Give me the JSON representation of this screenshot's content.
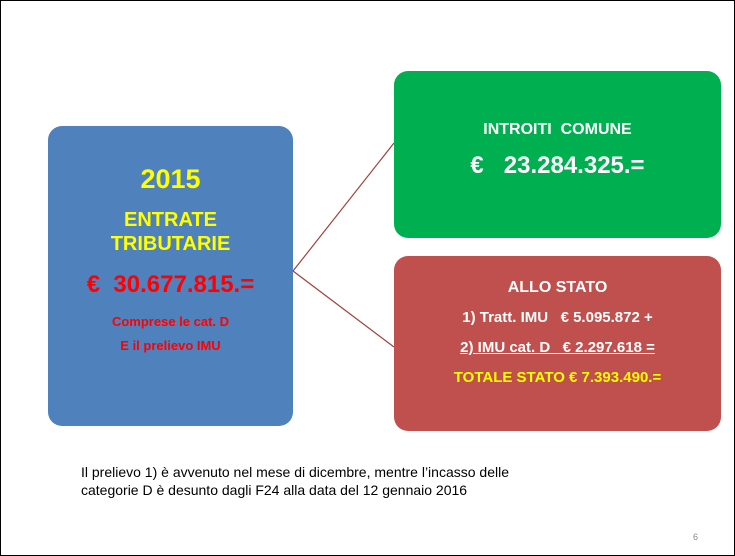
{
  "left_box": {
    "year": "2015",
    "heading_lines": [
      "ENTRATE",
      "TRIBUTARIE"
    ],
    "amount": "€  30.677.815.=",
    "note_lines": [
      "Comprese le cat. D",
      "E il prelievo IMU"
    ]
  },
  "top_box": {
    "heading": "INTROITI  COMUNE",
    "amount": "€   23.284.325.="
  },
  "bottom_box": {
    "heading": "ALLO STATO",
    "lines": [
      "1) Tratt. IMU   € 5.095.872 +",
      "2) IMU cat. D   € 2.297.618 ="
    ],
    "total": "TOTALE STATO € 7.393.490.="
  },
  "footer": {
    "lines": [
      "Il prelievo 1) è avvenuto nel mese di dicembre, mentre l’incasso delle",
      "categorie D è desunto dagli F24 alla data del 12 gennaio 2016"
    ]
  },
  "page_number": "6"
}
